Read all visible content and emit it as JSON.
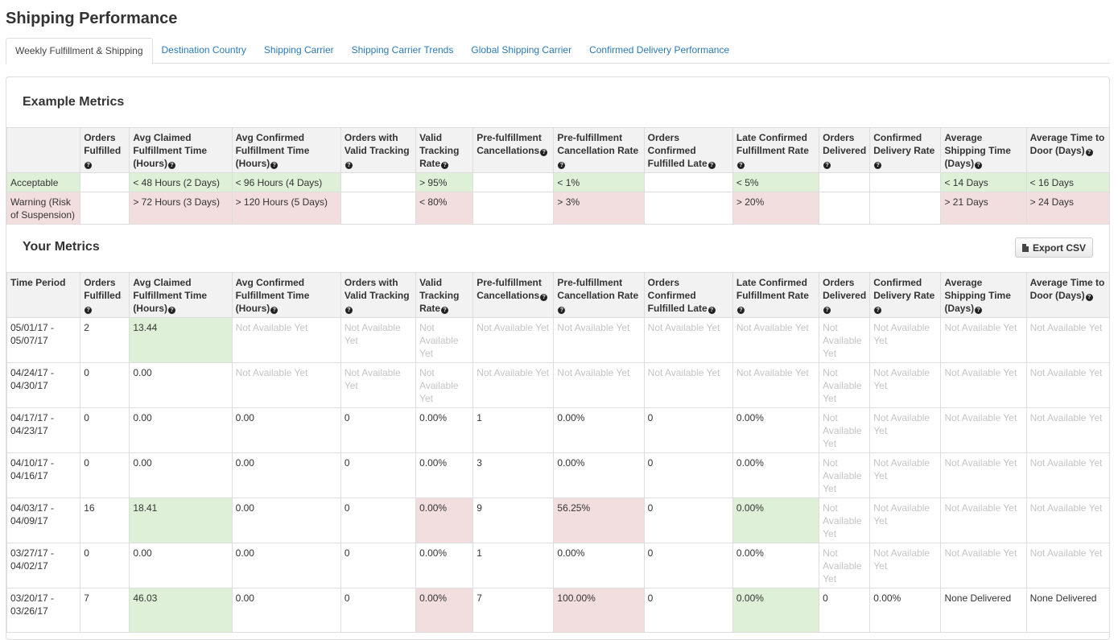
{
  "page": {
    "title": "Shipping Performance"
  },
  "tabs": [
    {
      "label": "Weekly Fulfillment & Shipping",
      "active": true
    },
    {
      "label": "Destination Country"
    },
    {
      "label": "Shipping Carrier"
    },
    {
      "label": "Shipping Carrier Trends"
    },
    {
      "label": "Global Shipping Carrier"
    },
    {
      "label": "Confirmed Delivery Performance"
    }
  ],
  "columns": [
    {
      "label": "Orders Fulfilled",
      "help": true
    },
    {
      "label": "Avg Claimed Fulfillment Time (Hours)",
      "help": true
    },
    {
      "label": "Avg Confirmed Fulfillment Time (Hours)",
      "help": true
    },
    {
      "label": "Orders with Valid Tracking",
      "help": true
    },
    {
      "label": "Valid Tracking Rate",
      "help": true
    },
    {
      "label": "Pre-fulfillment Cancellations",
      "help": true
    },
    {
      "label": "Pre-fulfillment Cancellation Rate",
      "help": true
    },
    {
      "label": "Orders Confirmed Fulfilled Late",
      "help": true
    },
    {
      "label": "Late Confirmed Fulfillment Rate",
      "help": true
    },
    {
      "label": "Orders Delivered",
      "help": true
    },
    {
      "label": "Confirmed Delivery Rate",
      "help": true
    },
    {
      "label": "Average Shipping Time (Days)",
      "help": true
    },
    {
      "label": "Average Time to Door (Days)",
      "help": true
    }
  ],
  "colors": {
    "good": "#dff0d8",
    "bad": "#f2dede",
    "link": "#2a7ab9"
  },
  "example": {
    "title": "Example Metrics",
    "rows": [
      {
        "label": "Acceptable",
        "label_status": "good",
        "cells": [
          {
            "value": ""
          },
          {
            "value": "< 48 Hours (2 Days)",
            "status": "good"
          },
          {
            "value": "< 96 Hours (4 Days)",
            "status": "good"
          },
          {
            "value": ""
          },
          {
            "value": "> 95%",
            "status": "good"
          },
          {
            "value": ""
          },
          {
            "value": "< 1%",
            "status": "good"
          },
          {
            "value": ""
          },
          {
            "value": "< 5%",
            "status": "good"
          },
          {
            "value": ""
          },
          {
            "value": ""
          },
          {
            "value": "< 14 Days",
            "status": "good"
          },
          {
            "value": "< 16 Days",
            "status": "good"
          }
        ]
      },
      {
        "label": "Warning (Risk of Suspension)",
        "label_status": "bad",
        "cells": [
          {
            "value": ""
          },
          {
            "value": "> 72 Hours (3 Days)",
            "status": "bad"
          },
          {
            "value": "> 120 Hours (5 Days)",
            "status": "bad"
          },
          {
            "value": ""
          },
          {
            "value": "< 80%",
            "status": "bad"
          },
          {
            "value": ""
          },
          {
            "value": "> 3%",
            "status": "bad"
          },
          {
            "value": ""
          },
          {
            "value": "> 20%",
            "status": "bad"
          },
          {
            "value": ""
          },
          {
            "value": ""
          },
          {
            "value": "> 21 Days",
            "status": "bad"
          },
          {
            "value": "> 24 Days",
            "status": "bad"
          }
        ]
      }
    ]
  },
  "metrics": {
    "title": "Your Metrics",
    "export_label": "Export CSV",
    "first_column_label": "Time Period",
    "na_text": "Not Available Yet",
    "rows": [
      {
        "period": "05/01/17 - 05/07/17",
        "cells": [
          {
            "value": "2"
          },
          {
            "value": "13.44",
            "status": "good"
          },
          {
            "value": "Not Available Yet",
            "status": "na"
          },
          {
            "value": "Not Available Yet",
            "status": "na"
          },
          {
            "value": "Not Available Yet",
            "status": "na"
          },
          {
            "value": "Not Available Yet",
            "status": "na"
          },
          {
            "value": "Not Available Yet",
            "status": "na"
          },
          {
            "value": "Not Available Yet",
            "status": "na"
          },
          {
            "value": "Not Available Yet",
            "status": "na"
          },
          {
            "value": "Not Available Yet",
            "status": "na"
          },
          {
            "value": "Not Available Yet",
            "status": "na"
          },
          {
            "value": "Not Available Yet",
            "status": "na"
          },
          {
            "value": "Not Available Yet",
            "status": "na"
          }
        ]
      },
      {
        "period": "04/24/17 - 04/30/17",
        "cells": [
          {
            "value": "0"
          },
          {
            "value": "0.00"
          },
          {
            "value": "Not Available Yet",
            "status": "na"
          },
          {
            "value": "Not Available Yet",
            "status": "na"
          },
          {
            "value": "Not Available Yet",
            "status": "na"
          },
          {
            "value": "Not Available Yet",
            "status": "na"
          },
          {
            "value": "Not Available Yet",
            "status": "na"
          },
          {
            "value": "Not Available Yet",
            "status": "na"
          },
          {
            "value": "Not Available Yet",
            "status": "na"
          },
          {
            "value": "Not Available Yet",
            "status": "na"
          },
          {
            "value": "Not Available Yet",
            "status": "na"
          },
          {
            "value": "Not Available Yet",
            "status": "na"
          },
          {
            "value": "Not Available Yet",
            "status": "na"
          }
        ]
      },
      {
        "period": "04/17/17 - 04/23/17",
        "cells": [
          {
            "value": "0"
          },
          {
            "value": "0.00"
          },
          {
            "value": "0.00"
          },
          {
            "value": "0"
          },
          {
            "value": "0.00%"
          },
          {
            "value": "1"
          },
          {
            "value": "0.00%"
          },
          {
            "value": "0"
          },
          {
            "value": "0.00%"
          },
          {
            "value": "Not Available Yet",
            "status": "na"
          },
          {
            "value": "Not Available Yet",
            "status": "na"
          },
          {
            "value": "Not Available Yet",
            "status": "na"
          },
          {
            "value": "Not Available Yet",
            "status": "na"
          }
        ]
      },
      {
        "period": "04/10/17 - 04/16/17",
        "cells": [
          {
            "value": "0"
          },
          {
            "value": "0.00"
          },
          {
            "value": "0.00"
          },
          {
            "value": "0"
          },
          {
            "value": "0.00%"
          },
          {
            "value": "3"
          },
          {
            "value": "0.00%"
          },
          {
            "value": "0"
          },
          {
            "value": "0.00%"
          },
          {
            "value": "Not Available Yet",
            "status": "na"
          },
          {
            "value": "Not Available Yet",
            "status": "na"
          },
          {
            "value": "Not Available Yet",
            "status": "na"
          },
          {
            "value": "Not Available Yet",
            "status": "na"
          }
        ]
      },
      {
        "period": "04/03/17 - 04/09/17",
        "cells": [
          {
            "value": "16"
          },
          {
            "value": "18.41",
            "status": "good"
          },
          {
            "value": "0.00"
          },
          {
            "value": "0"
          },
          {
            "value": "0.00%",
            "status": "bad"
          },
          {
            "value": "9"
          },
          {
            "value": "56.25%",
            "status": "bad"
          },
          {
            "value": "0"
          },
          {
            "value": "0.00%",
            "status": "good"
          },
          {
            "value": "Not Available Yet",
            "status": "na"
          },
          {
            "value": "Not Available Yet",
            "status": "na"
          },
          {
            "value": "Not Available Yet",
            "status": "na"
          },
          {
            "value": "Not Available Yet",
            "status": "na"
          }
        ]
      },
      {
        "period": "03/27/17 - 04/02/17",
        "cells": [
          {
            "value": "0"
          },
          {
            "value": "0.00"
          },
          {
            "value": "0.00"
          },
          {
            "value": "0"
          },
          {
            "value": "0.00%"
          },
          {
            "value": "1"
          },
          {
            "value": "0.00%"
          },
          {
            "value": "0"
          },
          {
            "value": "0.00%"
          },
          {
            "value": "Not Available Yet",
            "status": "na"
          },
          {
            "value": "Not Available Yet",
            "status": "na"
          },
          {
            "value": "Not Available Yet",
            "status": "na"
          },
          {
            "value": "Not Available Yet",
            "status": "na"
          }
        ]
      },
      {
        "period": "03/20/17 - 03/26/17",
        "cells": [
          {
            "value": "7"
          },
          {
            "value": "46.03",
            "status": "good"
          },
          {
            "value": "0.00"
          },
          {
            "value": "0"
          },
          {
            "value": "0.00%",
            "status": "bad"
          },
          {
            "value": "7"
          },
          {
            "value": "100.00%",
            "status": "bad"
          },
          {
            "value": "0"
          },
          {
            "value": "0.00%",
            "status": "good"
          },
          {
            "value": "0"
          },
          {
            "value": "0.00%"
          },
          {
            "value": "None Delivered"
          },
          {
            "value": "None Delivered"
          }
        ]
      }
    ]
  }
}
